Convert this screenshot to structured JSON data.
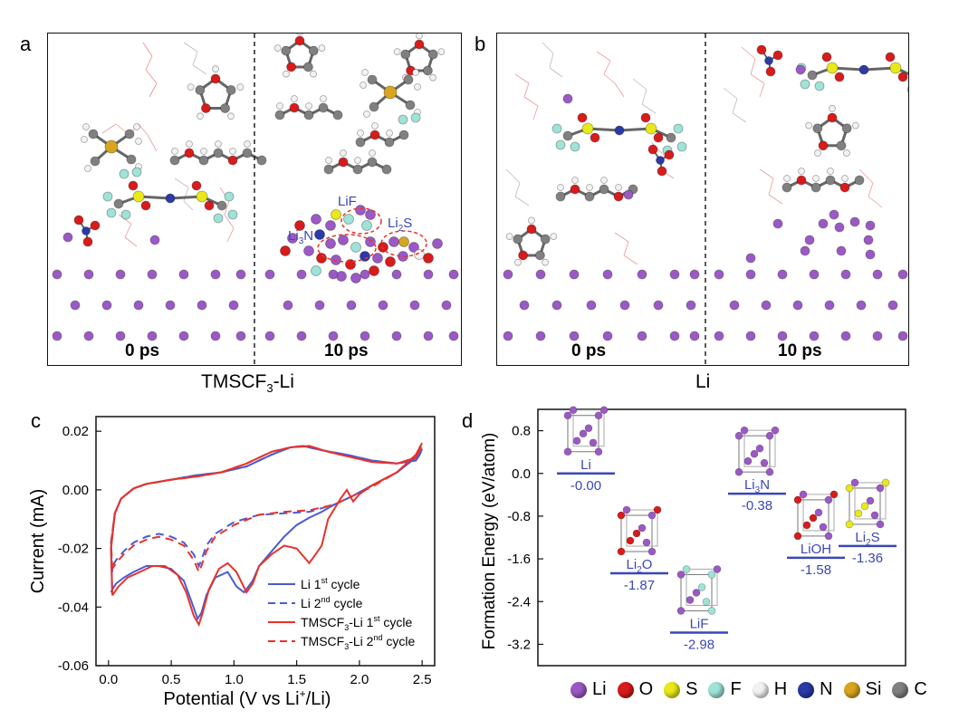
{
  "panels": {
    "a": {
      "label": "a",
      "caption_base": "TMSCF",
      "caption_sub": "3",
      "caption_tail": "-Li",
      "time_left": "0 ps",
      "time_right": "10 ps",
      "annotations": {
        "lif": "LiF",
        "li3n_base": "Li",
        "li3n_sub": "3",
        "li3n_tail": "N",
        "li2s_base": "Li",
        "li2s_sub": "2",
        "li2s_tail": "S"
      }
    },
    "b": {
      "label": "b",
      "caption": "Li",
      "time_left": "0 ps",
      "time_right": "10 ps"
    },
    "c": {
      "label": "c"
    },
    "d": {
      "label": "d"
    }
  },
  "colors": {
    "li": "#9b59c6",
    "o": "#d81b1b",
    "s": "#e8e81a",
    "f": "#9fe3d8",
    "h": "#f2f2f2",
    "n": "#2a3aa8",
    "si": "#d9a520",
    "c": "#808080",
    "blue": "#4a5bd4",
    "red": "#e8322a"
  },
  "element_legend": [
    {
      "symbol": "Li",
      "color": "#9b59c6"
    },
    {
      "symbol": "O",
      "color": "#d81b1b"
    },
    {
      "symbol": "S",
      "color": "#e8e81a"
    },
    {
      "symbol": "F",
      "color": "#9fe3d8"
    },
    {
      "symbol": "H",
      "color": "#f2f2f2"
    },
    {
      "symbol": "N",
      "color": "#2a3aa8"
    },
    {
      "symbol": "Si",
      "color": "#d9a520"
    },
    {
      "symbol": "C",
      "color": "#808080"
    }
  ],
  "chart_data": [
    {
      "type": "line",
      "title": "",
      "xlabel": "Potential (V vs Li",
      "xlabel_sup": "+",
      "xlabel_tail": "/Li)",
      "ylabel": "Current (mA)",
      "xlim": [
        -0.1,
        2.6
      ],
      "ylim": [
        -0.06,
        0.025
      ],
      "xticks": [
        "0.0",
        "0.5",
        "1.0",
        "1.5",
        "2.0",
        "2.5"
      ],
      "xtick_values": [
        0.0,
        0.5,
        1.0,
        1.5,
        2.0,
        2.5
      ],
      "yticks": [
        "0.02",
        "0.00",
        "-0.02",
        "-0.04",
        "-0.06"
      ],
      "ytick_values": [
        0.02,
        0.0,
        -0.02,
        -0.04,
        -0.06
      ],
      "series": [
        {
          "name_base": "Li 1",
          "name_sup": "st",
          "name_tail": " cycle",
          "color": "#4a5bd4",
          "dash": false,
          "x": [
            0.03,
            0.02,
            0.05,
            0.1,
            0.2,
            0.3,
            0.5,
            0.7,
            0.9,
            1.1,
            1.3,
            1.45,
            1.55,
            1.7,
            1.9,
            2.1,
            2.3,
            2.45,
            2.48,
            2.5,
            2.45,
            2.3,
            2.1,
            1.95,
            1.8,
            1.7,
            1.6,
            1.5,
            1.4,
            1.3,
            1.2,
            1.15,
            1.08,
            1.02,
            0.95,
            0.85,
            0.78,
            0.74,
            0.71,
            0.66,
            0.6,
            0.5,
            0.4,
            0.3,
            0.2,
            0.12,
            0.06,
            0.03,
            0.02
          ],
          "y": [
            -0.035,
            -0.02,
            -0.008,
            -0.003,
            0.0005,
            0.002,
            0.0035,
            0.005,
            0.006,
            0.008,
            0.012,
            0.0145,
            0.015,
            0.0135,
            0.012,
            0.01,
            0.009,
            0.01,
            0.012,
            0.014,
            0.011,
            0.006,
            0.0015,
            -0.002,
            -0.005,
            -0.0075,
            -0.0095,
            -0.012,
            -0.016,
            -0.021,
            -0.026,
            -0.031,
            -0.035,
            -0.033,
            -0.028,
            -0.03,
            -0.036,
            -0.042,
            -0.044,
            -0.038,
            -0.031,
            -0.027,
            -0.026,
            -0.026,
            -0.028,
            -0.03,
            -0.032,
            -0.034,
            -0.035
          ]
        },
        {
          "name_base": "Li 2",
          "name_sup": "nd",
          "name_tail": " cycle",
          "color": "#4a5bd4",
          "dash": true,
          "x": [
            0.03,
            0.02,
            0.05,
            0.1,
            0.2,
            0.3,
            0.5,
            0.7,
            0.9,
            1.1,
            1.3,
            1.45,
            1.55,
            1.7,
            1.9,
            2.1,
            2.3,
            2.45,
            2.48,
            2.5,
            2.45,
            2.3,
            2.1,
            1.95,
            1.8,
            1.6,
            1.4,
            1.2,
            1.0,
            0.85,
            0.78,
            0.74,
            0.72,
            0.68,
            0.6,
            0.5,
            0.4,
            0.3,
            0.2,
            0.12,
            0.06,
            0.03
          ],
          "y": [
            -0.028,
            -0.018,
            -0.008,
            -0.003,
            0.0005,
            0.002,
            0.0035,
            0.005,
            0.006,
            0.008,
            0.012,
            0.0145,
            0.015,
            0.0135,
            0.012,
            0.01,
            0.009,
            0.01,
            0.012,
            0.013,
            0.011,
            0.006,
            0.0015,
            -0.002,
            -0.005,
            -0.0075,
            -0.008,
            -0.0085,
            -0.011,
            -0.015,
            -0.019,
            -0.024,
            -0.026,
            -0.022,
            -0.018,
            -0.016,
            -0.015,
            -0.016,
            -0.018,
            -0.021,
            -0.024,
            -0.026
          ]
        },
        {
          "name_base": "TMSCF",
          "name_sub": "3",
          "name_mid": "-Li 1",
          "name_sup": "st",
          "name_tail": " cycle",
          "color": "#e8322a",
          "dash": false,
          "x": [
            0.03,
            0.02,
            0.05,
            0.1,
            0.2,
            0.3,
            0.5,
            0.7,
            0.9,
            1.1,
            1.3,
            1.45,
            1.6,
            1.75,
            1.9,
            2.1,
            2.3,
            2.45,
            2.48,
            2.5,
            2.45,
            2.3,
            2.1,
            2.0,
            1.95,
            1.9,
            1.85,
            1.75,
            1.7,
            1.6,
            1.5,
            1.4,
            1.3,
            1.2,
            1.15,
            1.1,
            1.02,
            0.95,
            0.88,
            0.8,
            0.75,
            0.72,
            0.68,
            0.62,
            0.55,
            0.45,
            0.35,
            0.25,
            0.15,
            0.08,
            0.03
          ],
          "y": [
            -0.036,
            -0.02,
            -0.008,
            -0.003,
            0.0005,
            0.002,
            0.0035,
            0.0045,
            0.006,
            0.009,
            0.013,
            0.0145,
            0.015,
            0.013,
            0.0115,
            0.0095,
            0.009,
            0.011,
            0.0145,
            0.016,
            0.012,
            0.006,
            0.0015,
            -0.0015,
            -0.004,
            0.0,
            -0.003,
            -0.01,
            -0.019,
            -0.025,
            -0.02,
            -0.019,
            -0.022,
            -0.026,
            -0.032,
            -0.035,
            -0.028,
            -0.025,
            -0.027,
            -0.034,
            -0.042,
            -0.046,
            -0.043,
            -0.035,
            -0.029,
            -0.026,
            -0.026,
            -0.028,
            -0.03,
            -0.033,
            -0.036
          ]
        },
        {
          "name_base": "TMSCF",
          "name_sub": "3",
          "name_mid": "-Li 2",
          "name_sup": "nd",
          "name_tail": " cycle",
          "color": "#e8322a",
          "dash": true,
          "x": [
            0.03,
            0.02,
            0.05,
            0.1,
            0.2,
            0.3,
            0.5,
            0.7,
            0.9,
            1.1,
            1.3,
            1.45,
            1.6,
            1.75,
            1.9,
            2.1,
            2.3,
            2.45,
            2.48,
            2.5,
            2.45,
            2.3,
            2.1,
            1.95,
            1.8,
            1.6,
            1.4,
            1.2,
            1.0,
            0.85,
            0.78,
            0.74,
            0.72,
            0.68,
            0.6,
            0.5,
            0.4,
            0.3,
            0.2,
            0.12,
            0.06,
            0.03
          ],
          "y": [
            -0.027,
            -0.018,
            -0.008,
            -0.003,
            0.0005,
            0.002,
            0.0035,
            0.0045,
            0.006,
            0.009,
            0.013,
            0.0145,
            0.015,
            0.013,
            0.0115,
            0.0095,
            0.009,
            0.011,
            0.0135,
            0.015,
            0.012,
            0.006,
            0.001,
            -0.002,
            -0.005,
            -0.007,
            -0.0075,
            -0.0085,
            -0.012,
            -0.016,
            -0.021,
            -0.026,
            -0.028,
            -0.024,
            -0.019,
            -0.017,
            -0.016,
            -0.017,
            -0.019,
            -0.022,
            -0.025,
            -0.027
          ]
        }
      ]
    },
    {
      "type": "bar",
      "title": "",
      "xlabel": "",
      "ylabel": "Formation Energy (eV/atom)",
      "ylim": [
        -3.6,
        1.2
      ],
      "yticks": [
        "0.8",
        "0.0",
        "-0.8",
        "-1.6",
        "-2.4",
        "-3.2"
      ],
      "ytick_values": [
        0.8,
        0.0,
        -0.8,
        -1.6,
        -2.4,
        -3.2
      ],
      "levels": [
        {
          "name_base": "Li",
          "name_sub": "",
          "name_tail": "",
          "value": -0.0,
          "value_label": "-0.00"
        },
        {
          "name_base": "Li",
          "name_sub": "2",
          "name_tail": "O",
          "value": -1.87,
          "value_label": "-1.87"
        },
        {
          "name_base": "LiF",
          "name_sub": "",
          "name_tail": "",
          "value": -2.98,
          "value_label": "-2.98"
        },
        {
          "name_base": "Li",
          "name_sub": "3",
          "name_tail": "N",
          "value": -0.38,
          "value_label": "-0.38"
        },
        {
          "name_base": "LiOH",
          "name_sub": "",
          "name_tail": "",
          "value": -1.58,
          "value_label": "-1.58"
        },
        {
          "name_base": "Li",
          "name_sub": "2",
          "name_tail": "S",
          "value": -1.36,
          "value_label": "-1.36"
        }
      ]
    }
  ]
}
